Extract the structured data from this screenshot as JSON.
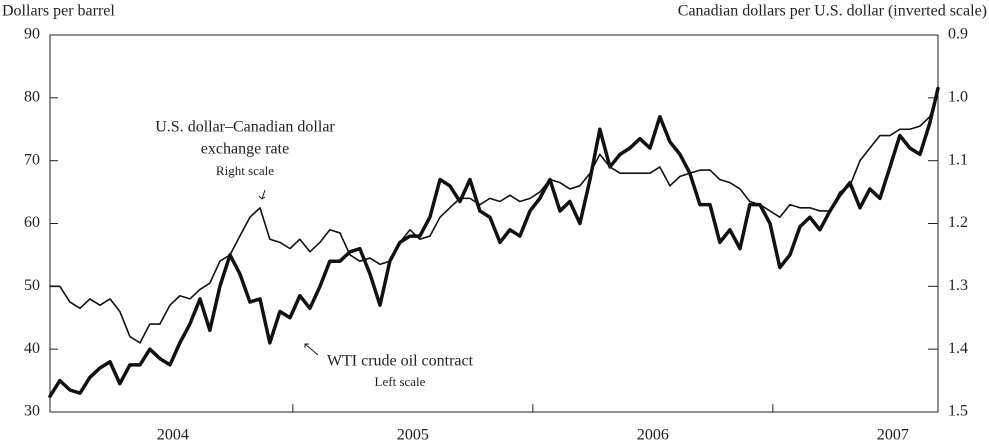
{
  "chart_data": {
    "type": "line",
    "y_label": "Dollars per barrel",
    "y2_label": "Canadian dollars per U.S. dollar (inverted scale)",
    "annotations": [
      "U.S. dollar–Canadian dollar",
      "exchange rate",
      "Right scale",
      "WTI crude oil contract",
      "Left scale"
    ],
    "xlim": [
      2003.988,
      2007.688
    ],
    "xticks": [
      {
        "value": 2004.5,
        "label": "2004"
      },
      {
        "value": 2005.5,
        "label": "2005"
      },
      {
        "value": 2006.5,
        "label": "2006"
      },
      {
        "value": 2007.5,
        "label": "2007"
      }
    ],
    "ylim": [
      30,
      90
    ],
    "yticks": [
      30,
      40,
      50,
      60,
      70,
      80,
      90
    ],
    "y2lim": [
      0.9,
      1.5
    ],
    "y2_inverted": true,
    "y2ticks": [
      0.9,
      {
        "value": 1,
        "label": "1.0"
      },
      1.1,
      1.2,
      1.3,
      1.4,
      1.5
    ],
    "x": [
      2003.988,
      2004.029,
      2004.071,
      2004.113,
      2004.154,
      2004.196,
      2004.238,
      2004.279,
      2004.321,
      2004.363,
      2004.404,
      2004.446,
      2004.488,
      2004.529,
      2004.571,
      2004.613,
      2004.654,
      2004.696,
      2004.738,
      2004.779,
      2004.821,
      2004.863,
      2004.904,
      2004.946,
      2004.988,
      2005.029,
      2005.071,
      2005.113,
      2005.154,
      2005.196,
      2005.238,
      2005.279,
      2005.321,
      2005.363,
      2005.404,
      2005.446,
      2005.488,
      2005.529,
      2005.571,
      2005.613,
      2005.654,
      2005.696,
      2005.738,
      2005.779,
      2005.821,
      2005.863,
      2005.904,
      2005.946,
      2005.988,
      2006.029,
      2006.071,
      2006.113,
      2006.154,
      2006.196,
      2006.238,
      2006.279,
      2006.321,
      2006.363,
      2006.404,
      2006.446,
      2006.488,
      2006.529,
      2006.571,
      2006.613,
      2006.654,
      2006.696,
      2006.738,
      2006.779,
      2006.821,
      2006.863,
      2006.904,
      2006.946,
      2006.988,
      2007.029,
      2007.071,
      2007.113,
      2007.154,
      2007.196,
      2007.238,
      2007.279,
      2007.321,
      2007.363,
      2007.404,
      2007.446,
      2007.488,
      2007.529,
      2007.571,
      2007.613,
      2007.654,
      2007.688
    ],
    "series": [
      {
        "color": "#111111",
        "width": 3.5,
        "axis": "y",
        "values": [
          32.5,
          35,
          33.5,
          33,
          35.5,
          37,
          38,
          34.5,
          37.5,
          37.5,
          40,
          38.5,
          37.5,
          41,
          44,
          48,
          43,
          50,
          55,
          52,
          47.5,
          48,
          41,
          46,
          45,
          48.5,
          46.5,
          50,
          54,
          54,
          55.5,
          56,
          52,
          47,
          54,
          57,
          58,
          58,
          61,
          67,
          66,
          63.5,
          67,
          62,
          61,
          57,
          59,
          58,
          62,
          64,
          67,
          62,
          63.5,
          60,
          67,
          75,
          69,
          71,
          72,
          73.5,
          72,
          77,
          73,
          71,
          68,
          63,
          63,
          57,
          59,
          56,
          63,
          63,
          60,
          53,
          55,
          59.5,
          61,
          59,
          62,
          64.5,
          66.5,
          62.5,
          65.5,
          64,
          69,
          74,
          72,
          71,
          76,
          81.5
        ]
      },
      {
        "color": "#111111",
        "width": 1.6,
        "axis": "y2",
        "values": [
          1.3,
          1.3,
          1.325,
          1.335,
          1.32,
          1.33,
          1.32,
          1.34,
          1.38,
          1.39,
          1.36,
          1.36,
          1.33,
          1.315,
          1.32,
          1.305,
          1.295,
          1.26,
          1.25,
          1.22,
          1.19,
          1.175,
          1.225,
          1.23,
          1.24,
          1.225,
          1.245,
          1.23,
          1.21,
          1.215,
          1.25,
          1.26,
          1.255,
          1.265,
          1.26,
          1.23,
          1.21,
          1.225,
          1.22,
          1.19,
          1.175,
          1.16,
          1.16,
          1.17,
          1.16,
          1.165,
          1.155,
          1.165,
          1.16,
          1.15,
          1.13,
          1.135,
          1.145,
          1.14,
          1.12,
          1.09,
          1.11,
          1.12,
          1.12,
          1.12,
          1.12,
          1.11,
          1.14,
          1.125,
          1.12,
          1.115,
          1.115,
          1.13,
          1.135,
          1.145,
          1.165,
          1.17,
          1.18,
          1.19,
          1.17,
          1.175,
          1.175,
          1.18,
          1.18,
          1.15,
          1.14,
          1.1,
          1.08,
          1.06,
          1.06,
          1.05,
          1.05,
          1.045,
          1.03,
          0.99
        ]
      }
    ]
  }
}
